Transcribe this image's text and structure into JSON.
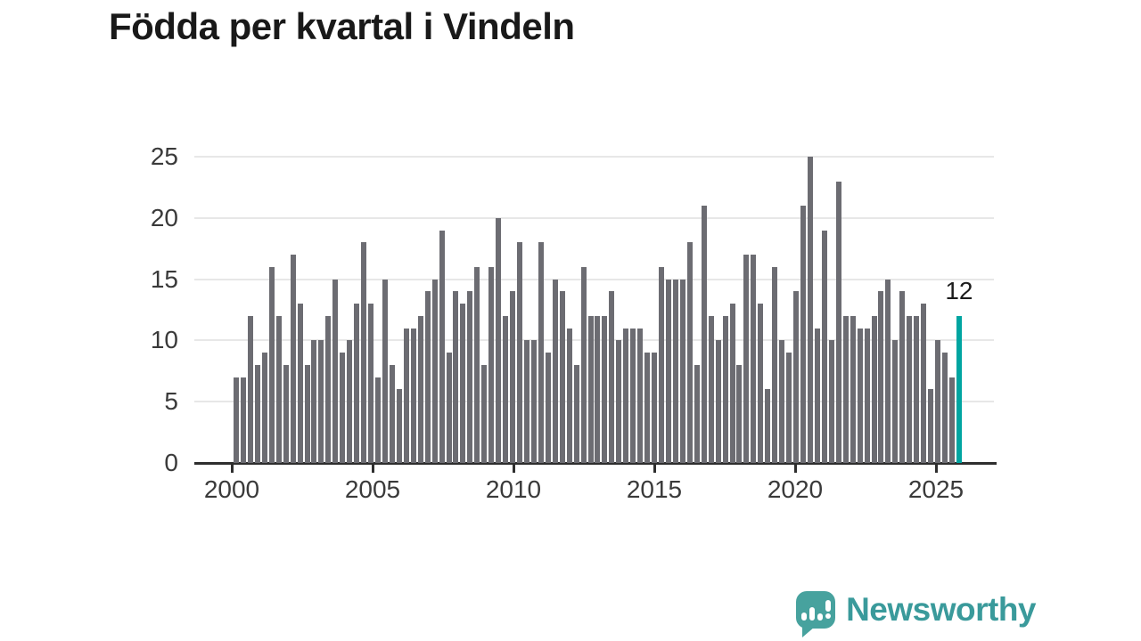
{
  "title": "Födda per kvartal i Vindeln",
  "chart_data": {
    "type": "bar",
    "title": "Födda per kvartal i Vindeln",
    "start_year": 2000,
    "start_quarter": 1,
    "values": [
      7,
      7,
      12,
      8,
      9,
      16,
      12,
      8,
      17,
      13,
      8,
      10,
      10,
      12,
      15,
      9,
      10,
      13,
      18,
      13,
      7,
      15,
      8,
      6,
      11,
      11,
      12,
      14,
      15,
      19,
      9,
      14,
      13,
      14,
      16,
      8,
      16,
      20,
      12,
      14,
      18,
      10,
      10,
      18,
      9,
      15,
      14,
      11,
      8,
      16,
      12,
      12,
      12,
      14,
      10,
      11,
      11,
      11,
      9,
      9,
      16,
      15,
      15,
      15,
      18,
      8,
      21,
      12,
      10,
      12,
      13,
      8,
      17,
      17,
      13,
      6,
      16,
      10,
      9,
      14,
      21,
      25,
      11,
      19,
      10,
      23,
      12,
      12,
      11,
      11,
      12,
      14,
      15,
      10,
      14,
      12,
      12,
      13,
      6,
      10,
      9,
      7,
      12
    ],
    "highlight": {
      "index": 102,
      "value": 12,
      "label": "12"
    },
    "y_ticks": [
      0,
      5,
      10,
      15,
      20,
      25
    ],
    "ylim": [
      0,
      25
    ],
    "x_tick_years": [
      2000,
      2005,
      2010,
      2015,
      2020,
      2025
    ],
    "x_tick_labels": [
      "2000",
      "2005",
      "2010",
      "2015",
      "2020",
      "2025"
    ],
    "grid": "horizontal",
    "legend": "none",
    "colors": {
      "bar": "#6c6c72",
      "highlight": "#00a5a1",
      "gridline": "#e7e7e7",
      "axis": "#2e2e2e",
      "tick_label": "#3a3a3a",
      "title": "#191919",
      "annotation": "#1c1c1c"
    }
  },
  "attribution": {
    "brand": "Newsworthy",
    "logo_icon": "speech-bubble-mini-bar-chart-icon",
    "brand_color": "#3a9a9b"
  }
}
